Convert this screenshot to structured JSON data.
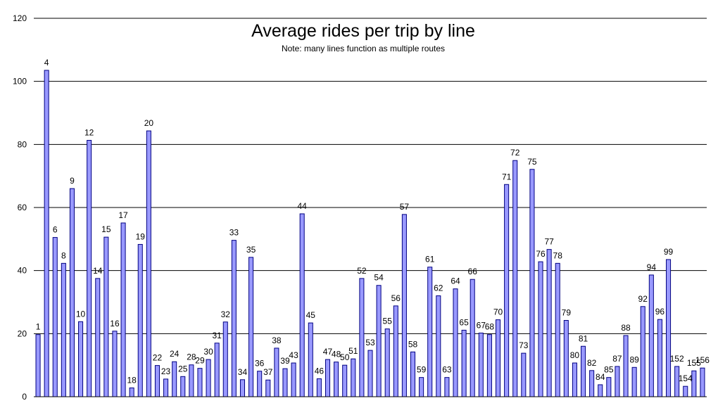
{
  "chart_data": {
    "type": "bar",
    "title": "Average rides per trip by line",
    "subtitle": "Note: many lines function as multiple routes",
    "xlabel": "",
    "ylabel": "",
    "ylim": [
      0,
      120
    ],
    "yticks": [
      0,
      20,
      40,
      60,
      80,
      100,
      120
    ],
    "grid": true,
    "bar_color": "#9999ff",
    "bar_edge_color": "#000080",
    "categories": [
      "1",
      "4",
      "6",
      "8",
      "9",
      "10",
      "12",
      "14",
      "15",
      "16",
      "17",
      "18",
      "19",
      "20",
      "22",
      "23",
      "24",
      "25",
      "28",
      "29",
      "30",
      "31",
      "32",
      "33",
      "34",
      "35",
      "36",
      "37",
      "38",
      "39",
      "43",
      "44",
      "45",
      "46",
      "47",
      "48",
      "50",
      "51",
      "52",
      "53",
      "54",
      "55",
      "56",
      "57",
      "58",
      "59",
      "61",
      "62",
      "63",
      "64",
      "65",
      "66",
      "67",
      "68",
      "70",
      "71",
      "72",
      "73",
      "75",
      "76",
      "77",
      "78",
      "79",
      "80",
      "81",
      "82",
      "84",
      "85",
      "87",
      "88",
      "89",
      "92",
      "94",
      "96",
      "99",
      "152",
      "154",
      "155",
      "156"
    ],
    "values": [
      19.7,
      103.5,
      50.5,
      42.3,
      66.0,
      23.8,
      81.3,
      37.5,
      50.6,
      20.8,
      55.1,
      2.8,
      48.3,
      84.3,
      9.9,
      5.6,
      11.1,
      6.4,
      10.1,
      9.0,
      11.8,
      17.0,
      23.7,
      49.6,
      5.4,
      44.2,
      8.1,
      5.3,
      15.4,
      8.9,
      10.7,
      58.0,
      23.4,
      5.7,
      11.8,
      11.0,
      10.0,
      12.0,
      37.5,
      14.7,
      35.3,
      21.5,
      28.8,
      57.8,
      14.2,
      6.1,
      41.1,
      32.0,
      6.1,
      34.2,
      21.1,
      37.2,
      20.2,
      19.7,
      24.4,
      67.3,
      74.9,
      13.8,
      72.1,
      42.8,
      46.7,
      42.3,
      24.2,
      10.7,
      16.0,
      8.3,
      3.8,
      6.1,
      9.6,
      19.4,
      9.3,
      28.6,
      38.6,
      24.5,
      43.5,
      9.6,
      3.3,
      8.2,
      9.1
    ]
  }
}
